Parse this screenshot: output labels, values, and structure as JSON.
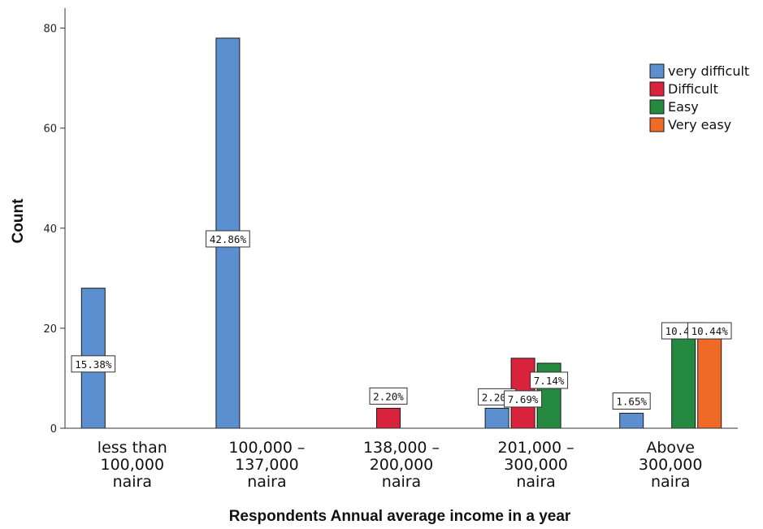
{
  "chart_data": {
    "type": "bar",
    "xlabel": "Respondents  Annual average income in a year",
    "ylabel": "Count",
    "ylim": [
      0,
      84
    ],
    "yticks": [
      0,
      20,
      40,
      60,
      80
    ],
    "grid": false,
    "legend_position": "top-right",
    "categories": [
      [
        "less than",
        "100,000",
        "naira"
      ],
      [
        "100,000 –",
        "137,000",
        "naira"
      ],
      [
        "138,000 –",
        "200,000",
        "naira"
      ],
      [
        "201,000 –",
        "300,000",
        "naira"
      ],
      [
        "Above",
        "300,000",
        "naira"
      ]
    ],
    "series": [
      {
        "name": "very difficult",
        "color": "#5b8fd0",
        "values": [
          28,
          78,
          0,
          4,
          3
        ],
        "labels": [
          "15.38%",
          "42.86%",
          "",
          "2.20%",
          "1.65%"
        ]
      },
      {
        "name": "Difficult",
        "color": "#d9233c",
        "values": [
          0,
          0,
          4,
          14,
          0
        ],
        "labels": [
          "",
          "",
          "2.20%",
          "7.69%",
          ""
        ]
      },
      {
        "name": "Easy",
        "color": "#248a3f",
        "values": [
          0,
          0,
          0,
          13,
          19
        ],
        "labels": [
          "",
          "",
          "",
          "7.14%",
          "10.44%"
        ]
      },
      {
        "name": "Very easy",
        "color": "#f06a27",
        "values": [
          0,
          0,
          0,
          0,
          19
        ],
        "labels": [
          "",
          "",
          "",
          "",
          "10.44%"
        ]
      }
    ]
  }
}
